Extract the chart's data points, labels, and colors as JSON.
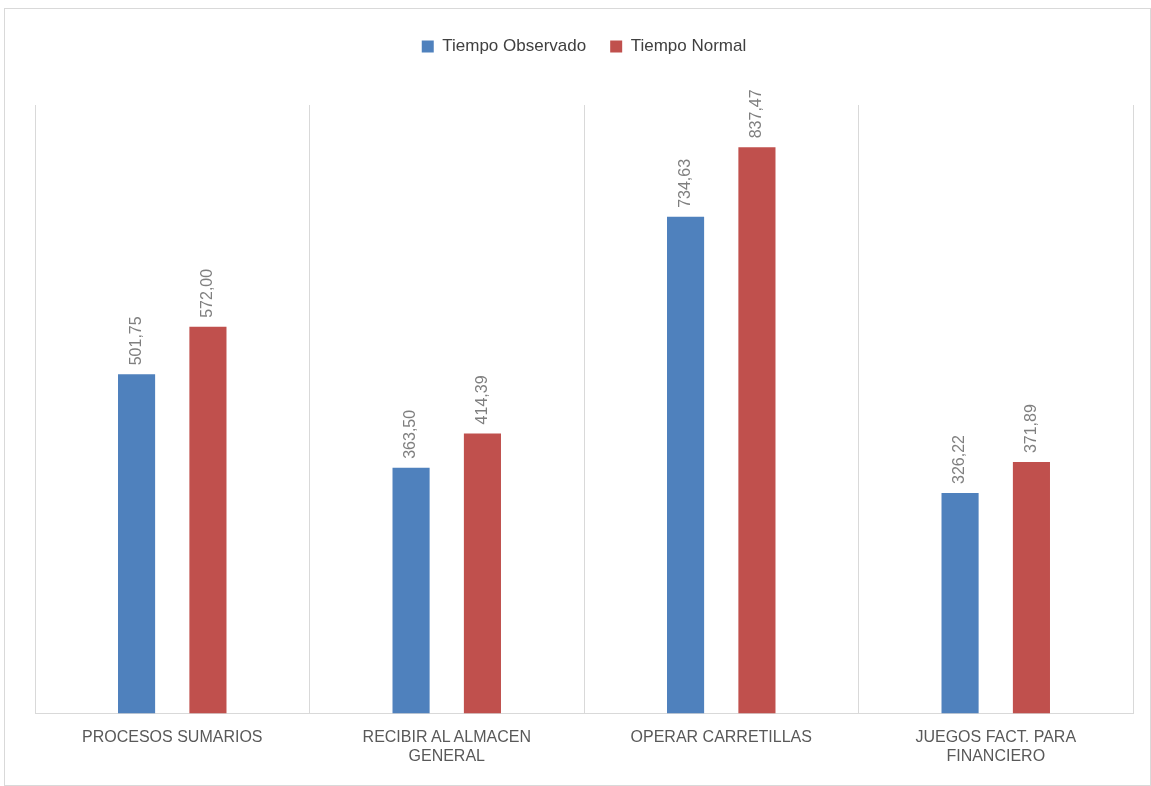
{
  "chart_data": {
    "type": "bar",
    "categories": [
      "PROCESOS SUMARIOS",
      "RECIBIR AL ALMACEN GENERAL",
      "OPERAR CARRETILLAS",
      "JUEGOS FACT. PARA FINANCIERO"
    ],
    "series": [
      {
        "name": "Tiempo Observado",
        "color": "#4f81bd",
        "values": [
          501.75,
          363.5,
          734.63,
          326.22
        ],
        "value_labels": [
          "501,75",
          "363,50",
          "734,63",
          "326,22"
        ]
      },
      {
        "name": "Tiempo Normal",
        "color": "#c0504d",
        "values": [
          572.0,
          414.39,
          837.47,
          371.89
        ],
        "value_labels": [
          "572,00",
          "414,39",
          "837,47",
          "371,89"
        ]
      }
    ],
    "ylim": [
      0,
      900
    ],
    "grid": "x",
    "legend": "top"
  }
}
